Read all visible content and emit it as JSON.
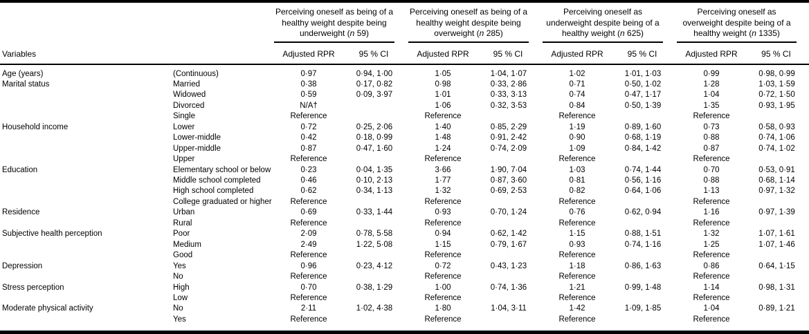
{
  "table": {
    "variables_header": "Variables",
    "footnote_marker": "†",
    "groups": [
      {
        "title": "Perceiving oneself as being of a healthy weight despite being underweight (n 59)",
        "rpr_label": "Adjusted RPR",
        "ci_label": "95 % CI"
      },
      {
        "title": "Perceiving oneself as being of a healthy weight despite being overweight (n 285)",
        "rpr_label": "Adjusted RPR",
        "ci_label": "95 % CI"
      },
      {
        "title": "Perceiving oneself as underweight despite being of a healthy weight (n 625)",
        "rpr_label": "Adjusted RPR",
        "ci_label": "95 % CI"
      },
      {
        "title": "Perceiving oneself as overweight despite being of a healthy weight (n 1335)",
        "rpr_label": "Adjusted RPR",
        "ci_label": "95 % CI"
      }
    ],
    "rows": [
      {
        "variable": "Age (years)",
        "category": "(Continuous)",
        "cells": [
          [
            "0·97",
            "0·94, 1·00"
          ],
          [
            "1·05",
            "1·04, 1·07"
          ],
          [
            "1·02",
            "1·01, 1·03"
          ],
          [
            "0·99",
            "0·98, 0·99"
          ]
        ]
      },
      {
        "variable": "Marital status",
        "category": "Married",
        "cells": [
          [
            "0·38",
            "0·17, 0·82"
          ],
          [
            "0·98",
            "0·33, 2·86"
          ],
          [
            "0·71",
            "0·50, 1·02"
          ],
          [
            "1·28",
            "1·03, 1·59"
          ]
        ]
      },
      {
        "variable": "",
        "category": "Widowed",
        "cells": [
          [
            "0·59",
            "0·09, 3·97"
          ],
          [
            "1·01",
            "0·33, 3·13"
          ],
          [
            "0·74",
            "0·47, 1·17"
          ],
          [
            "1·04",
            "0·72, 1·50"
          ]
        ]
      },
      {
        "variable": "",
        "category": "Divorced",
        "cells": [
          [
            "N/A†",
            ""
          ],
          [
            "1·06",
            "0·32, 3·53"
          ],
          [
            "0·84",
            "0·50, 1·39"
          ],
          [
            "1·35",
            "0·93, 1·95"
          ]
        ]
      },
      {
        "variable": "",
        "category": "Single",
        "cells": [
          [
            "Reference",
            ""
          ],
          [
            "Reference",
            ""
          ],
          [
            "Reference",
            ""
          ],
          [
            "Reference",
            ""
          ]
        ]
      },
      {
        "variable": "Household income",
        "category": "Lower",
        "cells": [
          [
            "0·72",
            "0·25, 2·06"
          ],
          [
            "1·40",
            "0·85, 2·29"
          ],
          [
            "1·19",
            "0·89, 1·60"
          ],
          [
            "0·73",
            "0·58, 0·93"
          ]
        ]
      },
      {
        "variable": "",
        "category": "Lower-middle",
        "cells": [
          [
            "0·42",
            "0·18, 0·99"
          ],
          [
            "1·48",
            "0·91, 2·42"
          ],
          [
            "0·90",
            "0·68, 1·19"
          ],
          [
            "0·88",
            "0·74, 1·06"
          ]
        ]
      },
      {
        "variable": "",
        "category": "Upper-middle",
        "cells": [
          [
            "0·87",
            "0·47, 1·60"
          ],
          [
            "1·24",
            "0·74, 2·09"
          ],
          [
            "1·09",
            "0·84, 1·42"
          ],
          [
            "0·87",
            "0·74, 1·02"
          ]
        ]
      },
      {
        "variable": "",
        "category": "Upper",
        "cells": [
          [
            "Reference",
            ""
          ],
          [
            "Reference",
            ""
          ],
          [
            "Reference",
            ""
          ],
          [
            "Reference",
            ""
          ]
        ]
      },
      {
        "variable": "Education",
        "category": "Elementary school or below",
        "cells": [
          [
            "0·23",
            "0·04, 1·35"
          ],
          [
            "3·66",
            "1·90, 7·04"
          ],
          [
            "1·03",
            "0·74, 1·44"
          ],
          [
            "0·70",
            "0·53, 0·91"
          ]
        ]
      },
      {
        "variable": "",
        "category": "Middle school completed",
        "cells": [
          [
            "0·46",
            "0·10, 2·13"
          ],
          [
            "1·77",
            "0·87, 3·60"
          ],
          [
            "0·81",
            "0·56, 1·16"
          ],
          [
            "0·88",
            "0·68, 1·14"
          ]
        ]
      },
      {
        "variable": "",
        "category": "High school completed",
        "cells": [
          [
            "0·62",
            "0·34, 1·13"
          ],
          [
            "1·32",
            "0·69, 2·53"
          ],
          [
            "0·82",
            "0·64, 1·06"
          ],
          [
            "1·13",
            "0·97, 1·32"
          ]
        ]
      },
      {
        "variable": "",
        "category": "College graduated or higher",
        "cells": [
          [
            "Reference",
            ""
          ],
          [
            "Reference",
            ""
          ],
          [
            "Reference",
            ""
          ],
          [
            "Reference",
            ""
          ]
        ]
      },
      {
        "variable": "Residence",
        "category": "Urban",
        "cells": [
          [
            "0·69",
            "0·33, 1·44"
          ],
          [
            "0·93",
            "0·70, 1·24"
          ],
          [
            "0·76",
            "0·62, 0·94"
          ],
          [
            "1·16",
            "0·97, 1·39"
          ]
        ]
      },
      {
        "variable": "",
        "category": "Rural",
        "cells": [
          [
            "Reference",
            ""
          ],
          [
            "Reference",
            ""
          ],
          [
            "Reference",
            ""
          ],
          [
            "Reference",
            ""
          ]
        ]
      },
      {
        "variable": "Subjective health perception",
        "category": "Poor",
        "cells": [
          [
            "2·09",
            "0·78, 5·58"
          ],
          [
            "0·94",
            "0·62, 1·42"
          ],
          [
            "1·15",
            "0·88, 1·51"
          ],
          [
            "1·32",
            "1·07, 1·61"
          ]
        ]
      },
      {
        "variable": "",
        "category": "Medium",
        "cells": [
          [
            "2·49",
            "1·22, 5·08"
          ],
          [
            "1·15",
            "0·79, 1·67"
          ],
          [
            "0·93",
            "0·74, 1·16"
          ],
          [
            "1·25",
            "1·07, 1·46"
          ]
        ]
      },
      {
        "variable": "",
        "category": "Good",
        "cells": [
          [
            "Reference",
            ""
          ],
          [
            "Reference",
            ""
          ],
          [
            "Reference",
            ""
          ],
          [
            "Reference",
            ""
          ]
        ]
      },
      {
        "variable": "Depression",
        "category": "Yes",
        "cells": [
          [
            "0·96",
            "0·23, 4·12"
          ],
          [
            "0·72",
            "0·43, 1·23"
          ],
          [
            "1·18",
            "0·86, 1·63"
          ],
          [
            "0·86",
            "0·64, 1·15"
          ]
        ]
      },
      {
        "variable": "",
        "category": "No",
        "cells": [
          [
            "Reference",
            ""
          ],
          [
            "Reference",
            ""
          ],
          [
            "Reference",
            ""
          ],
          [
            "Reference",
            ""
          ]
        ]
      },
      {
        "variable": "Stress perception",
        "category": "High",
        "cells": [
          [
            "0·70",
            "0·38, 1·29"
          ],
          [
            "1·00",
            "0·74, 1·36"
          ],
          [
            "1·21",
            "0·99, 1·48"
          ],
          [
            "1·14",
            "0·98, 1·31"
          ]
        ]
      },
      {
        "variable": "",
        "category": "Low",
        "cells": [
          [
            "Reference",
            ""
          ],
          [
            "Reference",
            ""
          ],
          [
            "Reference",
            ""
          ],
          [
            "Reference",
            ""
          ]
        ]
      },
      {
        "variable": "Moderate physical activity",
        "category": "No",
        "cells": [
          [
            "2·11",
            "1·02, 4·38"
          ],
          [
            "1·80",
            "1·04, 3·11"
          ],
          [
            "1·42",
            "1·09, 1·85"
          ],
          [
            "1·04",
            "0·89, 1·21"
          ]
        ]
      },
      {
        "variable": "",
        "category": "Yes",
        "cells": [
          [
            "Reference",
            ""
          ],
          [
            "Reference",
            ""
          ],
          [
            "Reference",
            ""
          ],
          [
            "Reference",
            ""
          ]
        ]
      }
    ]
  }
}
